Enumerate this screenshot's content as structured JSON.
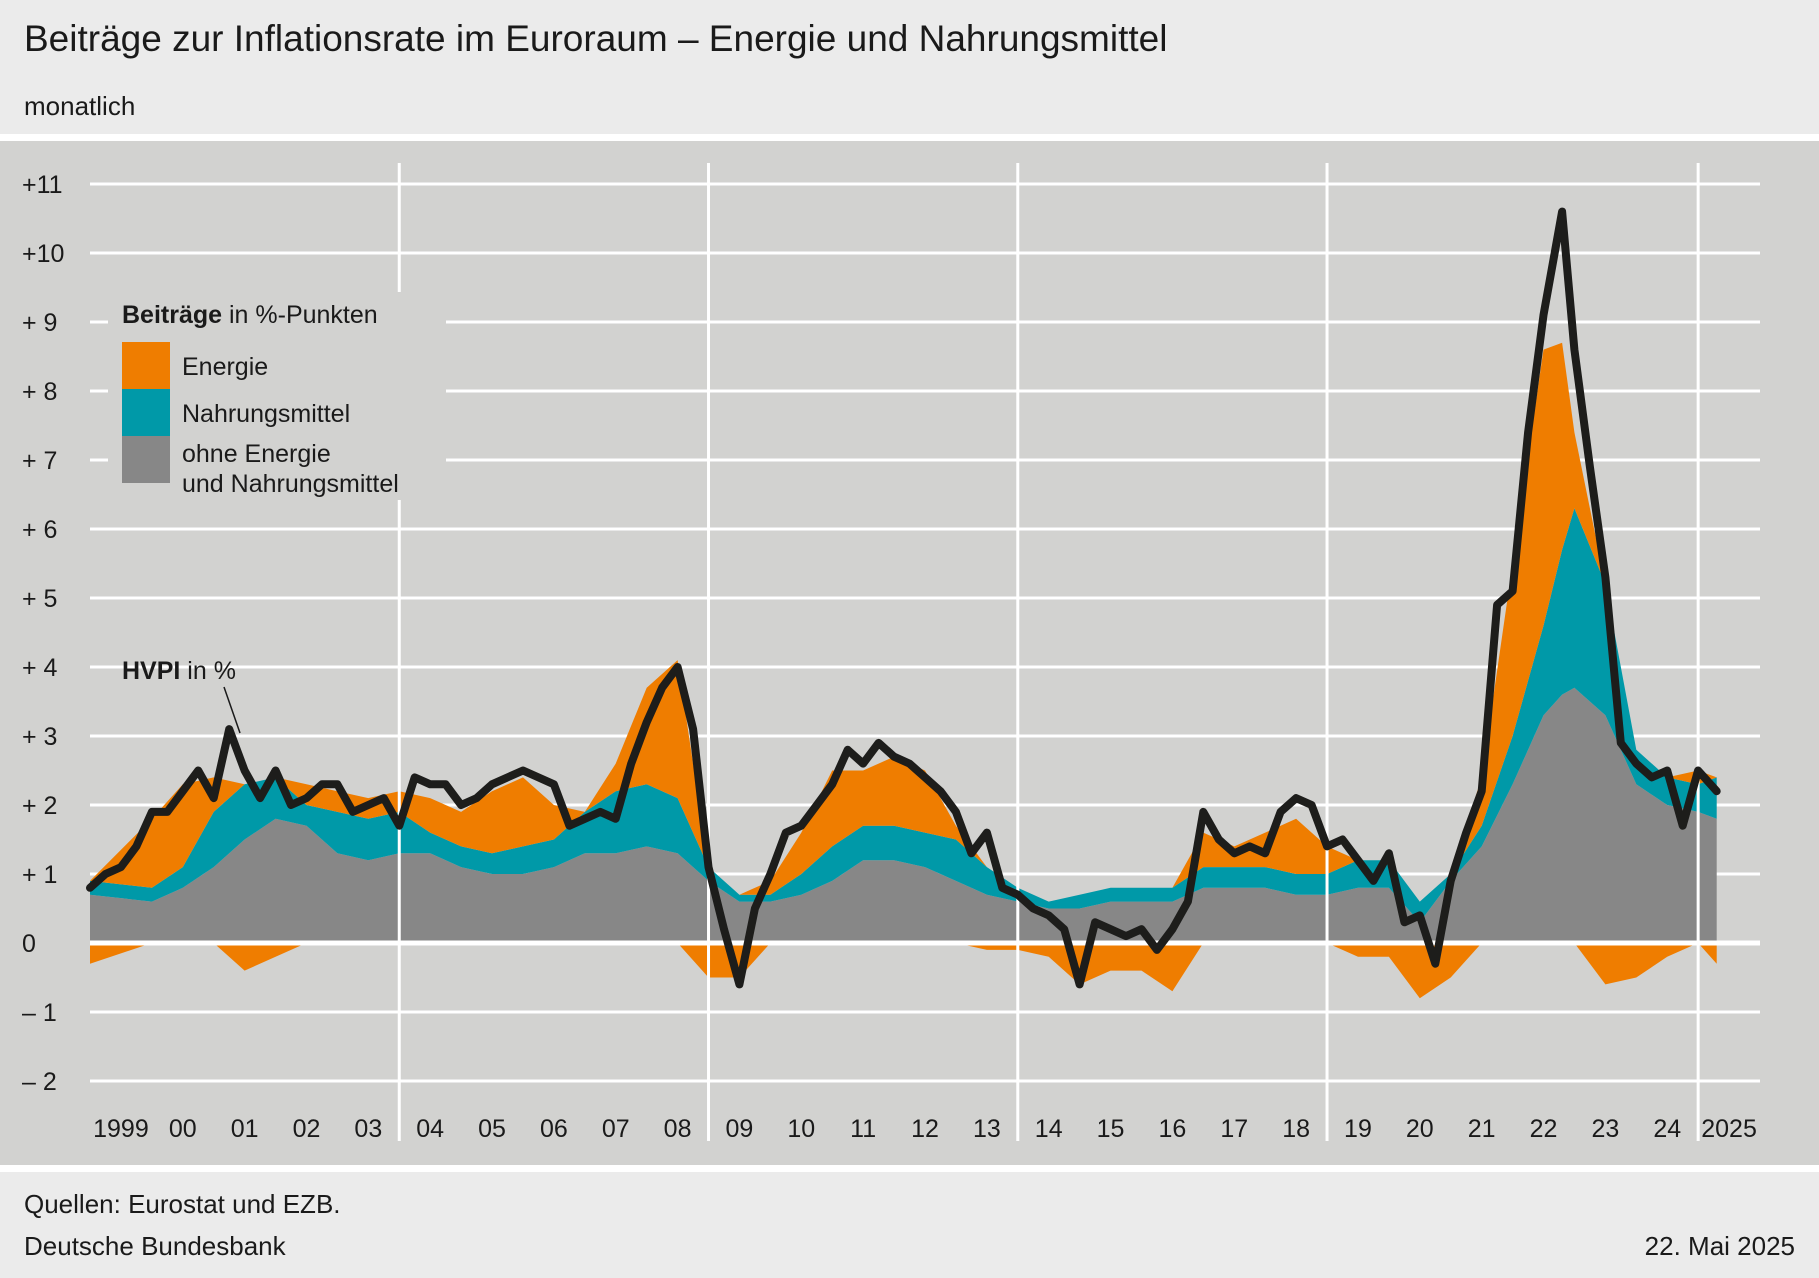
{
  "header": {
    "title": "Beiträge zur Inflationsrate im Euroraum – Energie und Nahrungsmittel",
    "subtitle": "monatlich"
  },
  "footer": {
    "source": "Quellen: Eurostat und EZB.",
    "publisher": "Deutsche Bundesbank",
    "date": "22. Mai 2025"
  },
  "chart_data": {
    "type": "area",
    "legend": {
      "title_bold": "Beiträge",
      "title_rest": " in %-Punkten",
      "placement": "top-left"
    },
    "line_label": {
      "bold": "HVPI",
      "rest": " in %"
    },
    "colors": {
      "energy": "#ef7d00",
      "food": "#0099a8",
      "core": "#878787",
      "hicp": "#1d1d1b",
      "background": "#d2d2d0",
      "grid": "#ffffff"
    },
    "y_ticks": [
      "+11",
      "+10",
      "+ 9",
      "+ 8",
      "+ 7",
      "+ 6",
      "+ 5",
      "+ 4",
      "+ 3",
      "+ 2",
      "+ 1",
      "0",
      "– 1",
      "– 2"
    ],
    "ylim": [
      -2.4,
      11.4
    ],
    "x_ticks": [
      "1999",
      "00",
      "01",
      "02",
      "03",
      "04",
      "05",
      "06",
      "07",
      "08",
      "09",
      "10",
      "11",
      "12",
      "13",
      "14",
      "15",
      "16",
      "17",
      "18",
      "19",
      "20",
      "21",
      "22",
      "23",
      "24",
      "2025"
    ],
    "x_start": 1999,
    "x_end": 2026,
    "year_separators": [
      2004,
      2009,
      2014,
      2019,
      2025
    ],
    "series": [
      {
        "name": "ohne Energie und Nahrungsmittel",
        "key": "core",
        "x": [
          1999.0,
          2000.0,
          2000.5,
          2001.0,
          2001.5,
          2002.0,
          2002.5,
          2003.0,
          2003.5,
          2004.0,
          2004.5,
          2005.0,
          2005.5,
          2006.0,
          2006.5,
          2007.0,
          2007.5,
          2008.0,
          2008.5,
          2009.0,
          2009.5,
          2010.0,
          2010.5,
          2011.0,
          2011.5,
          2012.0,
          2012.5,
          2013.0,
          2013.5,
          2014.0,
          2014.5,
          2015.0,
          2015.5,
          2016.0,
          2016.5,
          2017.0,
          2017.5,
          2018.0,
          2018.5,
          2019.0,
          2019.5,
          2020.0,
          2020.5,
          2021.0,
          2021.5,
          2022.0,
          2022.5,
          2022.8,
          2023.0,
          2023.5,
          2024.0,
          2024.5,
          2025.0,
          2025.3
        ],
        "values": [
          0.7,
          0.6,
          0.8,
          1.1,
          1.5,
          1.8,
          1.7,
          1.3,
          1.2,
          1.3,
          1.3,
          1.1,
          1.0,
          1.0,
          1.1,
          1.3,
          1.3,
          1.4,
          1.3,
          0.9,
          0.6,
          0.6,
          0.7,
          0.9,
          1.2,
          1.2,
          1.1,
          0.9,
          0.7,
          0.6,
          0.5,
          0.5,
          0.6,
          0.6,
          0.6,
          0.8,
          0.8,
          0.8,
          0.7,
          0.7,
          0.8,
          0.8,
          0.3,
          0.9,
          1.4,
          2.3,
          3.3,
          3.6,
          3.7,
          3.3,
          2.3,
          2.0,
          1.9,
          1.8
        ]
      },
      {
        "name": "Nahrungsmittel",
        "key": "food",
        "x": [
          1999.0,
          2000.0,
          2000.5,
          2001.0,
          2001.5,
          2002.0,
          2002.5,
          2003.0,
          2003.5,
          2004.0,
          2004.5,
          2005.0,
          2005.5,
          2006.0,
          2006.5,
          2007.0,
          2007.5,
          2008.0,
          2008.5,
          2009.0,
          2009.5,
          2010.0,
          2010.5,
          2011.0,
          2011.5,
          2012.0,
          2012.5,
          2013.0,
          2013.5,
          2014.0,
          2014.5,
          2015.0,
          2015.5,
          2016.0,
          2016.5,
          2017.0,
          2017.5,
          2018.0,
          2018.5,
          2019.0,
          2019.5,
          2020.0,
          2020.5,
          2021.0,
          2021.5,
          2022.0,
          2022.5,
          2022.8,
          2023.0,
          2023.5,
          2024.0,
          2024.5,
          2025.0,
          2025.3
        ],
        "values": [
          0.2,
          0.2,
          0.3,
          0.8,
          0.8,
          0.6,
          0.3,
          0.6,
          0.6,
          0.6,
          0.3,
          0.3,
          0.3,
          0.4,
          0.4,
          0.6,
          0.9,
          0.9,
          0.8,
          0.2,
          0.1,
          0.1,
          0.3,
          0.5,
          0.5,
          0.5,
          0.5,
          0.6,
          0.4,
          0.2,
          0.1,
          0.2,
          0.2,
          0.2,
          0.2,
          0.3,
          0.3,
          0.3,
          0.3,
          0.3,
          0.4,
          0.4,
          0.3,
          0.1,
          0.3,
          0.7,
          1.3,
          2.1,
          2.6,
          1.9,
          0.5,
          0.4,
          0.4,
          0.6
        ]
      },
      {
        "name": "Energie",
        "key": "energy",
        "x": [
          1999.0,
          2000.0,
          2000.5,
          2001.0,
          2001.5,
          2002.0,
          2002.5,
          2003.0,
          2003.5,
          2004.0,
          2004.5,
          2005.0,
          2005.5,
          2006.0,
          2006.5,
          2007.0,
          2007.5,
          2008.0,
          2008.5,
          2009.0,
          2009.5,
          2010.0,
          2010.5,
          2011.0,
          2011.5,
          2012.0,
          2012.5,
          2013.0,
          2013.5,
          2014.0,
          2014.5,
          2015.0,
          2015.5,
          2016.0,
          2016.5,
          2017.0,
          2017.5,
          2018.0,
          2018.5,
          2019.0,
          2019.5,
          2020.0,
          2020.5,
          2021.0,
          2021.5,
          2022.0,
          2022.5,
          2022.8,
          2023.0,
          2023.5,
          2024.0,
          2024.5,
          2025.0,
          2025.3
        ],
        "values": [
          -0.3,
          1.0,
          1.2,
          0.5,
          -0.4,
          -0.2,
          0.3,
          0.3,
          0.3,
          0.3,
          0.5,
          0.5,
          0.9,
          1.0,
          0.5,
          0.0,
          0.4,
          1.4,
          2.0,
          -0.5,
          -0.5,
          0.2,
          0.6,
          1.1,
          0.8,
          1.0,
          0.9,
          0.2,
          -0.1,
          -0.1,
          -0.2,
          -0.6,
          -0.4,
          -0.4,
          -0.7,
          0.5,
          0.3,
          0.5,
          0.8,
          0.4,
          -0.2,
          -0.2,
          -0.8,
          -0.5,
          0.7,
          2.5,
          4.0,
          3.0,
          1.1,
          -0.6,
          -0.5,
          -0.2,
          0.2,
          -0.3
        ]
      },
      {
        "name": "HVPI",
        "key": "hicp",
        "x": [
          1999.0,
          1999.25,
          1999.5,
          1999.75,
          2000.0,
          2000.25,
          2000.5,
          2000.75,
          2001.0,
          2001.25,
          2001.5,
          2001.75,
          2002.0,
          2002.25,
          2002.5,
          2002.75,
          2003.0,
          2003.25,
          2003.5,
          2003.75,
          2004.0,
          2004.25,
          2004.5,
          2004.75,
          2005.0,
          2005.25,
          2005.5,
          2005.75,
          2006.0,
          2006.25,
          2006.5,
          2006.75,
          2007.0,
          2007.25,
          2007.5,
          2007.75,
          2008.0,
          2008.25,
          2008.5,
          2008.75,
          2009.0,
          2009.25,
          2009.5,
          2009.75,
          2010.0,
          2010.25,
          2010.5,
          2010.75,
          2011.0,
          2011.25,
          2011.5,
          2011.75,
          2012.0,
          2012.25,
          2012.5,
          2012.75,
          2013.0,
          2013.25,
          2013.5,
          2013.75,
          2014.0,
          2014.25,
          2014.5,
          2014.75,
          2015.0,
          2015.25,
          2015.5,
          2015.75,
          2016.0,
          2016.25,
          2016.5,
          2016.75,
          2017.0,
          2017.25,
          2017.5,
          2017.75,
          2018.0,
          2018.25,
          2018.5,
          2018.75,
          2019.0,
          2019.25,
          2019.5,
          2019.75,
          2020.0,
          2020.25,
          2020.5,
          2020.75,
          2021.0,
          2021.25,
          2021.5,
          2021.75,
          2022.0,
          2022.25,
          2022.5,
          2022.8,
          2023.0,
          2023.25,
          2023.5,
          2023.75,
          2024.0,
          2024.25,
          2024.5,
          2024.75,
          2025.0,
          2025.3
        ],
        "values": [
          0.8,
          1.0,
          1.1,
          1.4,
          1.9,
          1.9,
          2.2,
          2.5,
          2.1,
          3.1,
          2.5,
          2.1,
          2.5,
          2.0,
          2.1,
          2.3,
          2.3,
          1.9,
          2.0,
          2.1,
          1.7,
          2.4,
          2.3,
          2.3,
          2.0,
          2.1,
          2.3,
          2.4,
          2.5,
          2.4,
          2.3,
          1.7,
          1.8,
          1.9,
          1.8,
          2.6,
          3.2,
          3.7,
          4.0,
          3.1,
          1.1,
          0.2,
          -0.6,
          0.5,
          1.0,
          1.6,
          1.7,
          2.0,
          2.3,
          2.8,
          2.6,
          2.9,
          2.7,
          2.6,
          2.4,
          2.2,
          1.9,
          1.3,
          1.6,
          0.8,
          0.7,
          0.5,
          0.4,
          0.2,
          -0.6,
          0.3,
          0.2,
          0.1,
          0.2,
          -0.1,
          0.2,
          0.6,
          1.9,
          1.5,
          1.3,
          1.4,
          1.3,
          1.9,
          2.1,
          2.0,
          1.4,
          1.5,
          1.2,
          0.9,
          1.3,
          0.3,
          0.4,
          -0.3,
          0.9,
          1.6,
          2.2,
          4.9,
          5.1,
          7.4,
          9.1,
          10.6,
          8.6,
          6.9,
          5.3,
          2.9,
          2.6,
          2.4,
          2.5,
          1.7,
          2.5,
          2.2
        ]
      }
    ]
  }
}
